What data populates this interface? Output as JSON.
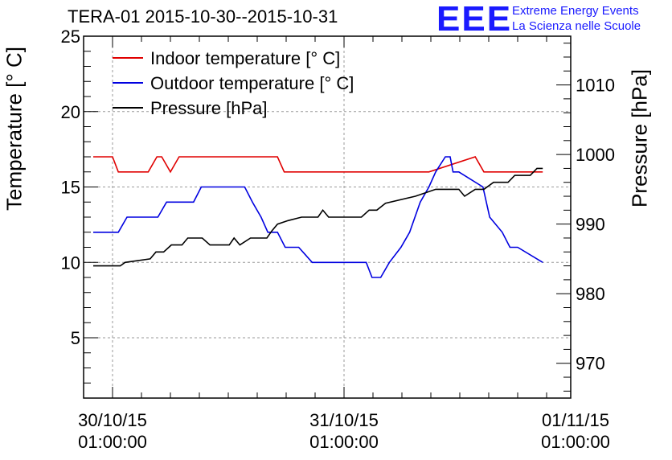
{
  "header": {
    "title": "TERA-01 2015-10-30--2015-10-31",
    "logo_text": "EEE",
    "logo_line1": "Extreme Energy Events",
    "logo_line2": "La Scienza nelle Scuole"
  },
  "colors": {
    "indoor": "#e00000",
    "outdoor": "#0000e0",
    "pressure": "#000000",
    "logo": "#1a1aff"
  },
  "chart_data": {
    "type": "line",
    "title": "TERA-01 2015-10-30--2015-10-31",
    "xlabel": "",
    "ylabel": "Temperature [° C]",
    "ylabel_right": "Pressure [hPa]",
    "xlim_hours": [
      -3,
      47.5
    ],
    "ylim": [
      1,
      25
    ],
    "ylim_right": [
      965,
      1017
    ],
    "grid": true,
    "legend_position": "top-left",
    "x_ticks": [
      {
        "x": 0,
        "line1": "30/10/15",
        "line2": "01:00:00"
      },
      {
        "x": 24,
        "line1": "31/10/15",
        "line2": "01:00:00"
      },
      {
        "x": 48,
        "line1": "01/11/15",
        "line2": "01:00:00"
      }
    ],
    "y_ticks": [
      5,
      10,
      15,
      20,
      25
    ],
    "y_ticks_right": [
      970,
      980,
      990,
      1000,
      1010
    ],
    "series": [
      {
        "name": "Indoor temperature [° C]",
        "axis": "left",
        "color": "#e00000",
        "x": [
          -2,
          0,
          0.6,
          3.7,
          4.6,
          5.1,
          6,
          6.9,
          17.1,
          17.8,
          32.8,
          37.6,
          38.5,
          44.6
        ],
        "y": [
          17,
          17,
          16,
          16,
          17,
          17,
          16,
          17,
          17,
          16,
          16,
          17,
          16,
          16
        ]
      },
      {
        "name": "Outdoor temperature [° C]",
        "axis": "left",
        "color": "#0000e0",
        "x": [
          -2,
          0.6,
          1.5,
          4.7,
          5.6,
          8.4,
          9.2,
          13.7,
          14.5,
          15.4,
          16.1,
          17.1,
          17.9,
          19.3,
          20.7,
          26.3,
          26.9,
          27.8,
          28.7,
          29.9,
          30.8,
          31.9,
          32.8,
          33.5,
          34.5,
          35,
          35.3,
          35.9,
          38.4,
          39.1,
          40.4,
          41.2,
          42,
          44.6
        ],
        "y": [
          12,
          12,
          13,
          13,
          14,
          14,
          15,
          15,
          14,
          13,
          12,
          12,
          11,
          11,
          10,
          10,
          9,
          9,
          10,
          11,
          12,
          14,
          15,
          16,
          17,
          17,
          16,
          16,
          15,
          13,
          12,
          11,
          11,
          10
        ]
      },
      {
        "name": "Pressure [hPa]",
        "axis": "right",
        "color": "#000000",
        "x": [
          -2,
          0.8,
          1.3,
          3.9,
          4.5,
          5.3,
          6.1,
          7.2,
          7.8,
          9.3,
          10.1,
          12.1,
          12.6,
          13.2,
          14.3,
          16,
          16.5,
          17.1,
          18.2,
          19.6,
          21.3,
          21.8,
          22.4,
          25.8,
          26.6,
          27.4,
          28.3,
          31.4,
          33.5,
          34.1,
          35.9,
          36.5,
          37.6,
          38.5,
          39.5,
          41,
          41.7,
          43.3,
          44,
          44.6
        ],
        "y": [
          984,
          984,
          984.5,
          985,
          986,
          986,
          987,
          987,
          988,
          988,
          987,
          987,
          988,
          987,
          988,
          988,
          989,
          990,
          990.5,
          991,
          991,
          992,
          991,
          991,
          992,
          992,
          993,
          994,
          995,
          995,
          995,
          994,
          995,
          995,
          996,
          996,
          997,
          997,
          998,
          998
        ]
      }
    ]
  }
}
